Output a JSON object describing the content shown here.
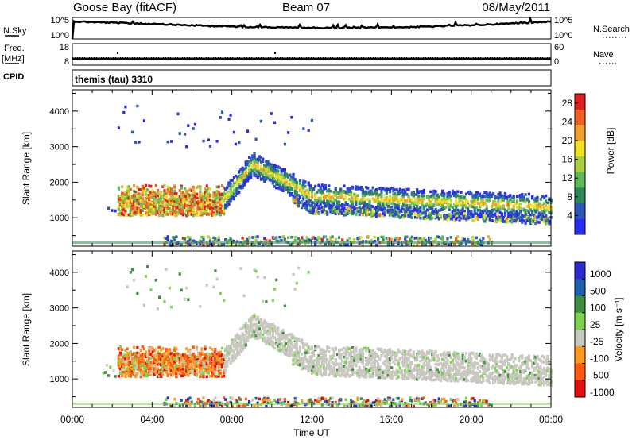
{
  "header": {
    "station": "Goose Bay (fitACF)",
    "beam": "Beam 07",
    "date": "08/May/2011"
  },
  "top_panels": {
    "nsky_label": "N.Sky",
    "nsky_ticks": [
      "10^5",
      "10^0"
    ],
    "nsearch_label": "N.Search",
    "nsearch_ticks": [
      "10^5",
      "10^0"
    ],
    "freq_label": "Freq.",
    "freq_unit": "[MHz]",
    "freq_ticks": [
      "18",
      "8"
    ],
    "nave_label": "Nave",
    "nave_ticks": [
      "60",
      "0"
    ],
    "cpid_label": "CPID",
    "cpid_value": "themis (tau) 3310"
  },
  "colors": {
    "power": [
      "#2a2af0",
      "#2d58b8",
      "#2f8a5a",
      "#5fb85a",
      "#a8d040",
      "#f0e020",
      "#f0a030",
      "#f06020",
      "#e02020"
    ],
    "velocity": [
      "#e01010",
      "#ff5a10",
      "#ff9a20",
      "#c8c8c0",
      "#7dd250",
      "#3f8f3f",
      "#2060b0",
      "#2a2ad0"
    ]
  },
  "chart_data": [
    {
      "type": "heatmap",
      "name": "power",
      "ylabel": "Slant Range [km]",
      "yticks": [
        "1000",
        "2000",
        "3000",
        "4000"
      ],
      "ylim": [
        200,
        4600
      ],
      "xlim": [
        0,
        24
      ],
      "colorbar_label": "Power [dB]",
      "colorbar_ticks": [
        "4",
        "8",
        "12",
        "16",
        "20",
        "24",
        "28"
      ],
      "colorbar_range": [
        0,
        30
      ]
    },
    {
      "type": "heatmap",
      "name": "velocity",
      "ylabel": "Slant Range [km]",
      "yticks": [
        "1000",
        "2000",
        "3000",
        "4000"
      ],
      "ylim": [
        200,
        4600
      ],
      "xlim": [
        0,
        24
      ],
      "colorbar_label": "Velocity [m s⁻¹]",
      "colorbar_ticks": [
        "1000",
        "500",
        "100",
        "25",
        "-25",
        "-100",
        "-500",
        "-1000"
      ]
    }
  ],
  "xaxis": {
    "label": "Time UT",
    "ticks": [
      "00:00",
      "04:00",
      "08:00",
      "12:00",
      "16:00",
      "20:00",
      "00:00"
    ]
  }
}
